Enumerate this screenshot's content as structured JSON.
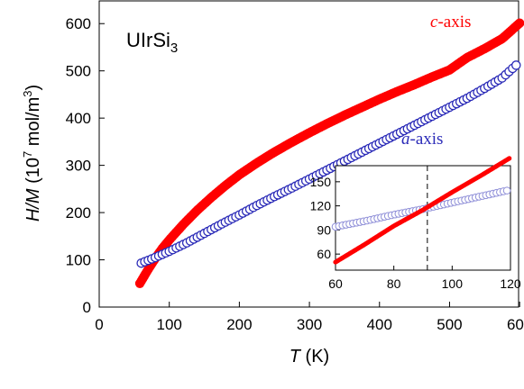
{
  "chart_data": [
    {
      "type": "scatter",
      "compound": {
        "base": "UIrSi",
        "sub": "3"
      },
      "xlabel": {
        "var": "T",
        "unit": " (K)"
      },
      "ylabel": {
        "var": "H/M",
        "unit_a": " (10",
        "exp": "7",
        "unit_b": " mol/m",
        "exp2": "3",
        "unit_c": ")"
      },
      "xlim": [
        0,
        650
      ],
      "ylim": [
        0,
        650
      ],
      "xticks": [
        0,
        100,
        200,
        300,
        400,
        500,
        600
      ],
      "yticks": [
        0,
        100,
        200,
        300,
        400,
        500,
        600
      ],
      "series": [
        {
          "name": "c-axis",
          "name_italic": "c",
          "name_rest": "-axis",
          "color": "#ff0000",
          "marker": "filled",
          "x": [
            58,
            70,
            80,
            90,
            100,
            120,
            140,
            160,
            180,
            200,
            225,
            250,
            275,
            300,
            325,
            350,
            375,
            400,
            425,
            450,
            475,
            500,
            525,
            550,
            575,
            600
          ],
          "y": [
            50,
            80,
            103,
            124,
            142,
            175,
            205,
            232,
            257,
            280,
            305,
            328,
            349,
            369,
            388,
            406,
            423,
            440,
            456,
            471,
            487,
            502,
            528,
            547,
            568,
            601
          ]
        },
        {
          "name": "a-axis",
          "name_italic": "a",
          "name_rest": "-axis",
          "color": "#2b2bb8",
          "marker": "open",
          "x": [
            60,
            80,
            100,
            125,
            150,
            175,
            200,
            225,
            250,
            275,
            300,
            325,
            350,
            375,
            400,
            425,
            450,
            475,
            500,
            525,
            550,
            575,
            595
          ],
          "y": [
            93,
            105,
            118,
            136,
            156,
            176,
            195,
            215,
            234,
            252,
            271,
            290,
            309,
            328,
            347,
            366,
            385,
            404,
            423,
            442,
            463,
            485,
            512
          ]
        }
      ]
    },
    {
      "type": "scatter",
      "inset": true,
      "xlim": [
        60,
        120
      ],
      "ylim": [
        40,
        170
      ],
      "xticks": [
        60,
        80,
        100,
        120
      ],
      "yticks": [
        60,
        90,
        120,
        150
      ],
      "vline_x": 91.5,
      "series": [
        {
          "name": "c-axis",
          "color": "#ff0000",
          "marker": "filled",
          "x": [
            60,
            70,
            80,
            90,
            100,
            110,
            120
          ],
          "y": [
            50,
            72,
            95,
            115,
            137,
            158,
            180
          ]
        },
        {
          "name": "a-axis",
          "color": "#2b2bb8",
          "marker": "open",
          "x": [
            60,
            70,
            80,
            90,
            100,
            110,
            120
          ],
          "y": [
            94,
            101,
            109,
            116,
            124,
            132,
            140
          ]
        }
      ]
    }
  ]
}
